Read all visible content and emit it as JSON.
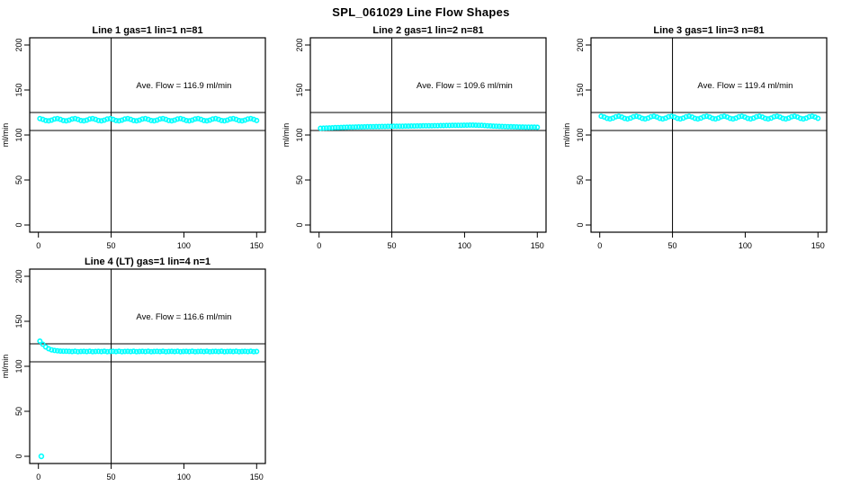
{
  "figure": {
    "main_title": "SPL_061029  Line Flow Shapes",
    "background_color": "#FFFFFF",
    "marker_color": "#00FFFF",
    "axis_color": "#000000"
  },
  "chart_data": [
    {
      "type": "scatter",
      "title": "Line 1 gas=1 lin=1 n=81",
      "annotation": "Ave. Flow =  116.9  ml/min",
      "ave_flow": 116.9,
      "ylabel": "ml/min",
      "x_ticks": [
        0,
        50,
        100,
        150
      ],
      "y_ticks": [
        0,
        50,
        100,
        150,
        200
      ],
      "xlim": [
        -6,
        156
      ],
      "ylim": [
        -8,
        208
      ],
      "vline_x": 50,
      "hlines": [
        125,
        105
      ],
      "x_start": 1,
      "x_end": 150,
      "y": [
        118.2,
        117.4,
        116.1,
        115.7,
        116.5,
        117.8,
        118.2,
        117.4,
        116.1,
        115.7,
        116.5,
        117.8,
        118.2,
        117.4,
        116.1,
        115.7,
        116.5,
        117.8,
        118.2,
        117.4,
        116.1,
        115.7,
        116.5,
        117.8,
        118.2,
        117.4,
        116.1,
        115.7,
        116.5,
        117.8,
        118.2,
        117.4,
        116.1,
        115.7,
        116.5,
        117.8,
        118.2,
        117.4,
        116.1,
        115.7,
        116.5,
        117.8,
        118.2,
        117.4,
        116.1,
        115.7,
        116.5,
        117.8,
        118.2,
        117.4,
        116.1,
        115.7,
        116.5,
        117.8,
        118.2,
        117.4,
        116.1,
        115.7,
        116.5,
        117.8,
        118.2,
        117.4,
        116.1,
        115.7,
        116.5,
        117.8,
        118.2,
        117.4,
        116.1,
        115.7,
        116.5,
        117.8,
        118.2,
        117.4,
        116.1
      ],
      "extra_points": []
    },
    {
      "type": "scatter",
      "title": "Line 2 gas=1 lin=2 n=81",
      "annotation": "Ave. Flow =  109.6  ml/min",
      "ave_flow": 109.6,
      "ylabel": "ml/min",
      "x_ticks": [
        0,
        50,
        100,
        150
      ],
      "y_ticks": [
        0,
        50,
        100,
        150,
        200
      ],
      "xlim": [
        -6,
        156
      ],
      "ylim": [
        -8,
        208
      ],
      "vline_x": 50,
      "hlines": [
        125,
        105
      ],
      "x_start": 1,
      "x_end": 150,
      "y": [
        107.5,
        107.6,
        107.8,
        107.9,
        108.0,
        108.2,
        108.3,
        108.4,
        108.5,
        108.6,
        108.7,
        108.8,
        108.9,
        109.0,
        109.0,
        109.1,
        109.2,
        109.2,
        109.3,
        109.4,
        109.4,
        109.5,
        109.5,
        109.6,
        109.6,
        109.7,
        109.7,
        109.8,
        109.8,
        109.9,
        109.9,
        110.0,
        110.0,
        110.1,
        110.1,
        110.2,
        110.2,
        110.3,
        110.3,
        110.4,
        110.4,
        110.5,
        110.5,
        110.6,
        110.6,
        110.7,
        110.7,
        110.8,
        110.8,
        110.9,
        110.9,
        111.0,
        111.0,
        110.9,
        110.8,
        110.7,
        110.5,
        110.3,
        110.1,
        109.9,
        109.8,
        109.6,
        109.5,
        109.4,
        109.3,
        109.2,
        109.1,
        109.0,
        108.9,
        108.9,
        108.8,
        108.8,
        108.7,
        108.7,
        108.6
      ],
      "extra_points": []
    },
    {
      "type": "scatter",
      "title": "Line 3 gas=1 lin=3 n=81",
      "annotation": "Ave. Flow =  119.4  ml/min",
      "ave_flow": 119.4,
      "ylabel": "ml/min",
      "x_ticks": [
        0,
        50,
        100,
        150
      ],
      "y_ticks": [
        0,
        50,
        100,
        150,
        200
      ],
      "xlim": [
        -6,
        156
      ],
      "ylim": [
        -8,
        208
      ],
      "vline_x": 50,
      "hlines": [
        125,
        105
      ],
      "x_start": 1,
      "x_end": 150,
      "y": [
        120.9,
        120.0,
        118.5,
        117.9,
        118.7,
        120.3,
        120.9,
        120.0,
        118.5,
        117.9,
        118.7,
        120.3,
        120.9,
        120.0,
        118.5,
        117.9,
        118.7,
        120.3,
        120.9,
        120.0,
        118.5,
        117.9,
        118.7,
        120.3,
        120.9,
        120.0,
        118.5,
        117.9,
        118.7,
        120.3,
        120.9,
        120.0,
        118.5,
        117.9,
        118.7,
        120.3,
        120.9,
        120.0,
        118.5,
        117.9,
        118.7,
        120.3,
        120.9,
        120.0,
        118.5,
        117.9,
        118.7,
        120.3,
        120.9,
        120.0,
        118.5,
        117.9,
        118.7,
        120.3,
        120.9,
        120.0,
        118.5,
        117.9,
        118.7,
        120.3,
        120.9,
        120.0,
        118.5,
        117.9,
        118.7,
        120.3,
        120.9,
        120.0,
        118.5,
        117.9,
        118.7,
        120.3,
        120.9,
        120.0,
        118.5
      ],
      "extra_points": []
    },
    {
      "type": "scatter",
      "title": "Line 4 (LT) gas=1 lin=4 n=1",
      "annotation": "Ave. Flow =  116.6  ml/min",
      "ave_flow": 116.6,
      "ylabel": "ml/min",
      "x_ticks": [
        0,
        50,
        100,
        150
      ],
      "y_ticks": [
        0,
        50,
        100,
        150,
        200
      ],
      "xlim": [
        -6,
        156
      ],
      "ylim": [
        -8,
        208
      ],
      "vline_x": 50,
      "hlines": [
        125,
        105
      ],
      "x_start": 1,
      "x_end": 150,
      "y": [
        128.0,
        124.5,
        121.5,
        119.5,
        118.3,
        117.6,
        117.2,
        116.9,
        116.8,
        116.7,
        116.6,
        116.4,
        116.7,
        116.3,
        116.5,
        116.6,
        116.4,
        116.7,
        116.3,
        116.5,
        116.6,
        116.4,
        116.7,
        116.3,
        116.5,
        116.6,
        116.4,
        116.7,
        116.3,
        116.5,
        116.6,
        116.4,
        116.7,
        116.3,
        116.5,
        116.6,
        116.4,
        116.7,
        116.3,
        116.5,
        116.6,
        116.4,
        116.7,
        116.3,
        116.5,
        116.6,
        116.4,
        116.7,
        116.3,
        116.5,
        116.6,
        116.4,
        116.7,
        116.3,
        116.5,
        116.6,
        116.4,
        116.7,
        116.3,
        116.5,
        116.6,
        116.4,
        116.7,
        116.3,
        116.5,
        116.6,
        116.4,
        116.7,
        116.3,
        116.5,
        116.6,
        116.4,
        116.7,
        116.3,
        116.5
      ],
      "extra_points": [
        {
          "x": 2,
          "y": 0
        }
      ]
    }
  ]
}
